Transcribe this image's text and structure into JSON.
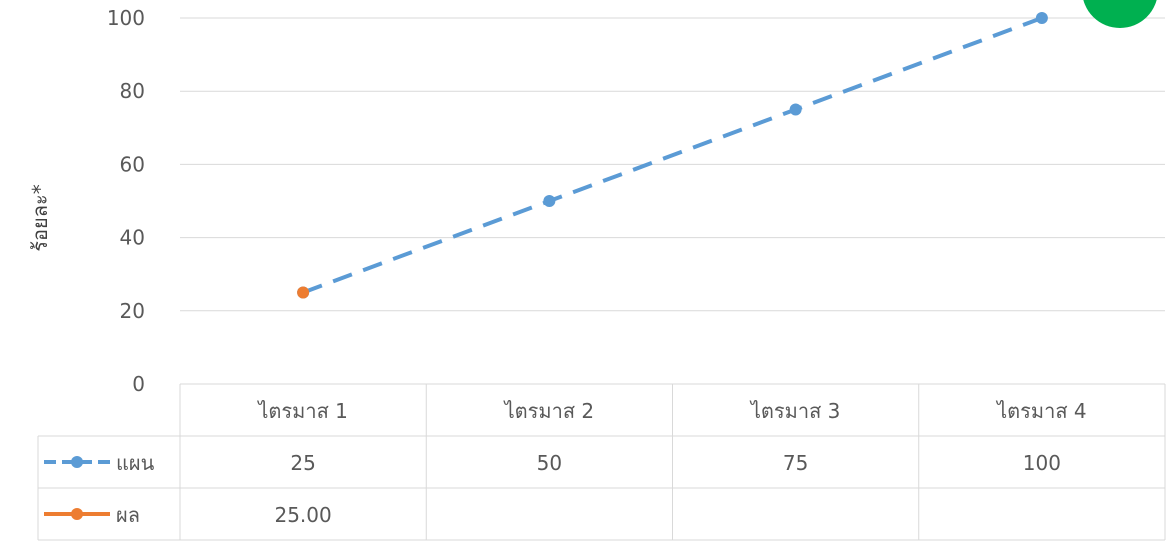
{
  "chart_data": {
    "type": "line",
    "ylabel": "ร้อยละ*",
    "ylim": [
      0,
      100
    ],
    "yticks": [
      0,
      20,
      40,
      60,
      80,
      100
    ],
    "categories": [
      "ไตรมาส 1",
      "ไตรมาส 2",
      "ไตรมาส 3",
      "ไตรมาส 4"
    ],
    "grid": true,
    "series": [
      {
        "name": "แผน",
        "values": [
          25,
          50,
          75,
          100
        ],
        "labels": [
          "25",
          "50",
          "75",
          "100"
        ],
        "color": "#5B9BD5",
        "style": "dashed"
      },
      {
        "name": "ผล",
        "values": [
          25,
          null,
          null,
          null
        ],
        "labels": [
          "25.00",
          "",
          "",
          ""
        ],
        "color": "#ED7D31",
        "style": "solid"
      }
    ],
    "status_marker": {
      "color": "#00B050"
    }
  }
}
